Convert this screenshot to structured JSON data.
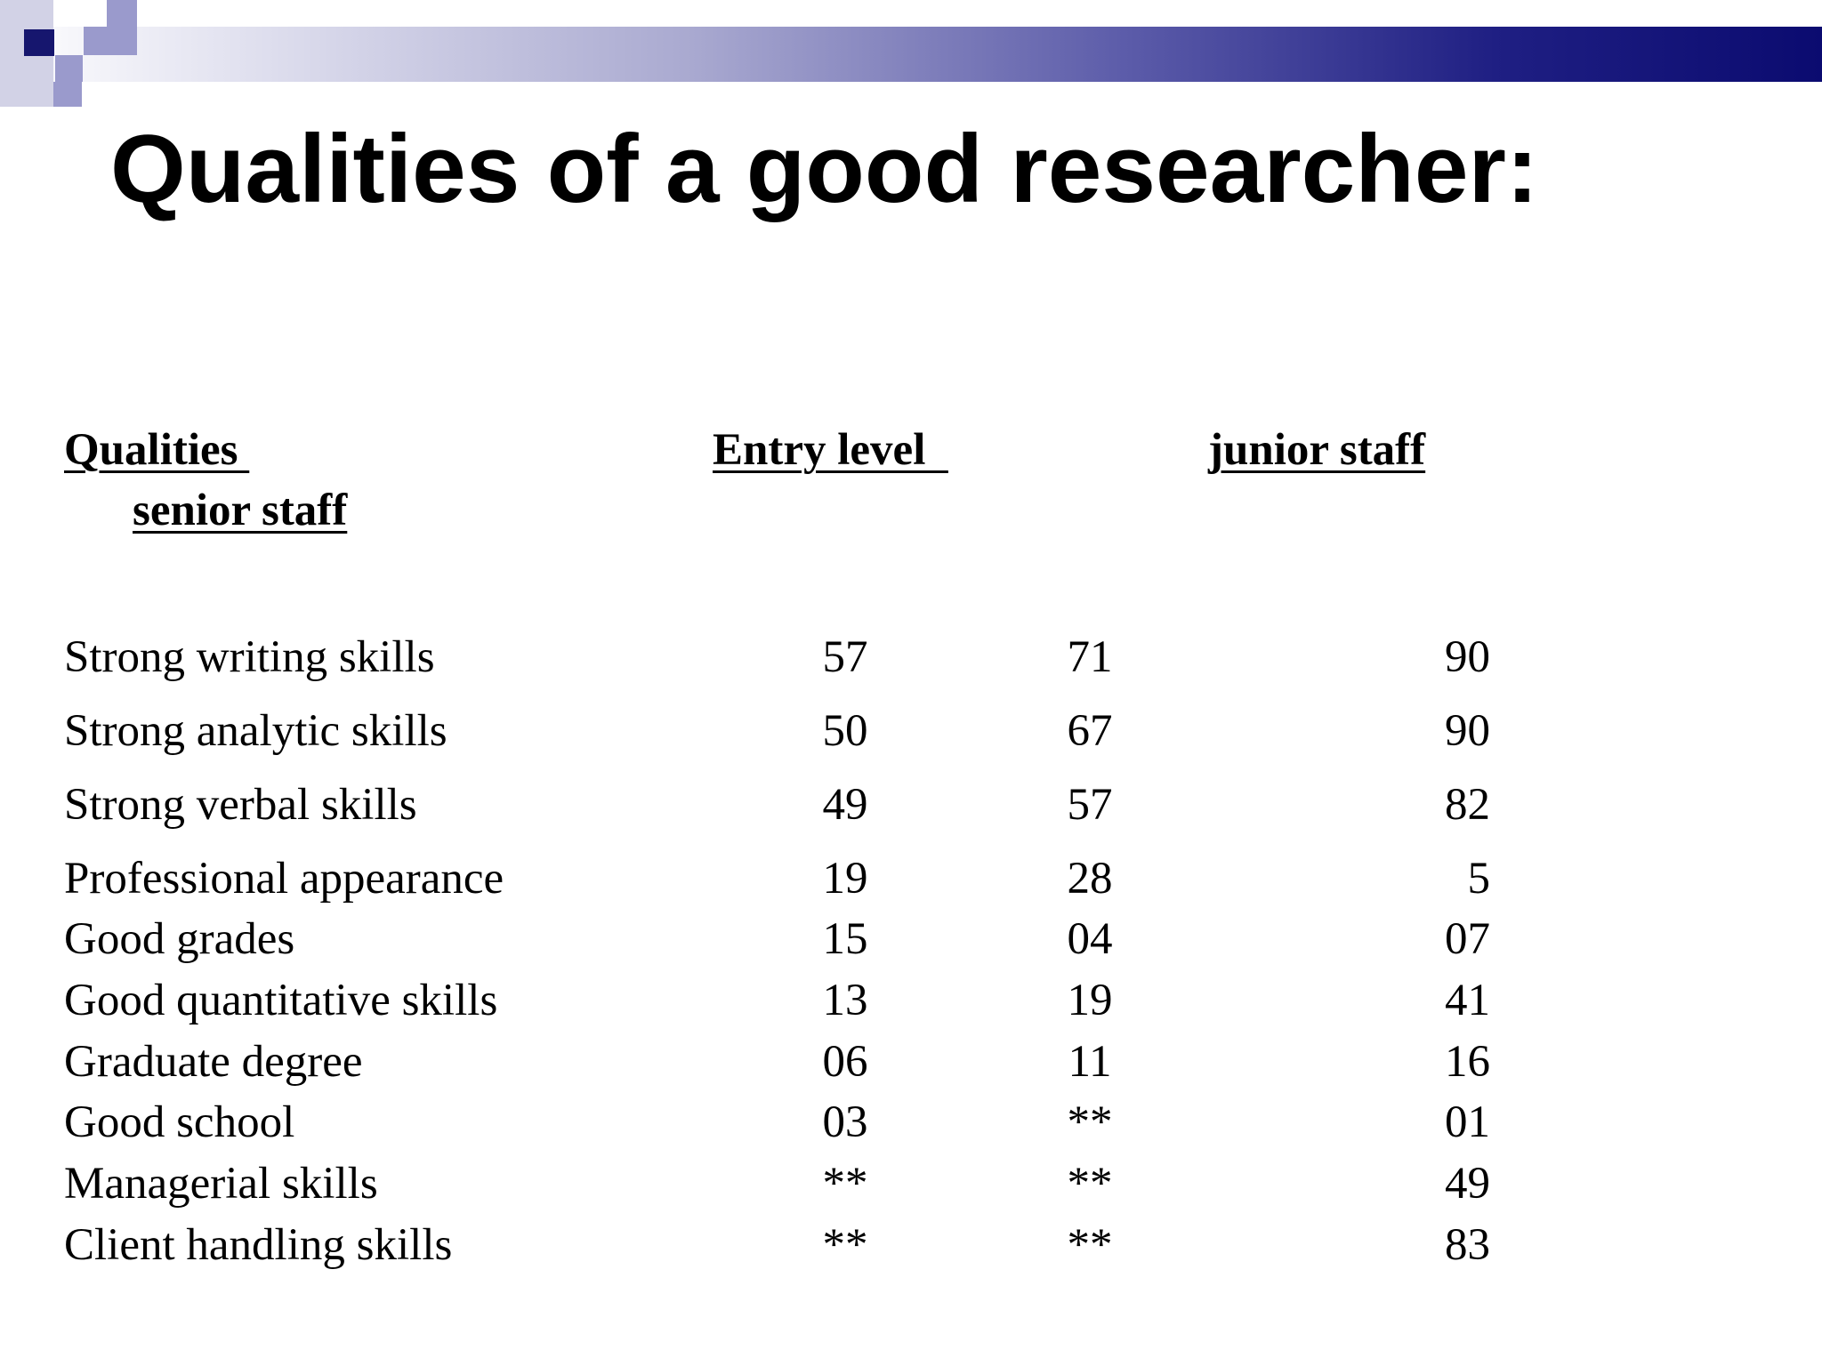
{
  "slide": {
    "title": "Qualities of a good researcher:"
  },
  "table": {
    "headers": {
      "qualities": "Qualities ",
      "entry_level": "Entry level  ",
      "junior_staff": "junior staff",
      "senior_staff": "senior staff"
    },
    "rows": [
      {
        "label": "Strong writing skills",
        "entry": "57",
        "junior": "71",
        "senior": "90"
      },
      {
        "label": "Strong analytic skills",
        "entry": "50",
        "junior": "67",
        "senior": "90"
      },
      {
        "label": "Strong verbal skills",
        "entry": "49",
        "junior": "57",
        "senior": "82"
      },
      {
        "label": "Professional appearance",
        "entry": "19",
        "junior": "28",
        "senior": "5"
      },
      {
        "label": "Good grades",
        "entry": "15",
        "junior": "04",
        "senior": "07"
      },
      {
        "label": "Good quantitative skills",
        "entry": "13",
        "junior": "19",
        "senior": "41"
      },
      {
        "label": "Graduate degree",
        "entry": "06",
        "junior": "11",
        "senior": "16"
      },
      {
        "label": "Good school",
        "entry": "03",
        "junior": "**",
        "senior": "01"
      },
      {
        "label": "Managerial skills",
        "entry": "**",
        "junior": "**",
        "senior": "49"
      },
      {
        "label": "Client handling skills",
        "entry": "**",
        "junior": "**",
        "senior": "83"
      }
    ]
  },
  "colors": {
    "banner_dark": "#0b0b70",
    "banner_light": "#a9a9d0"
  }
}
